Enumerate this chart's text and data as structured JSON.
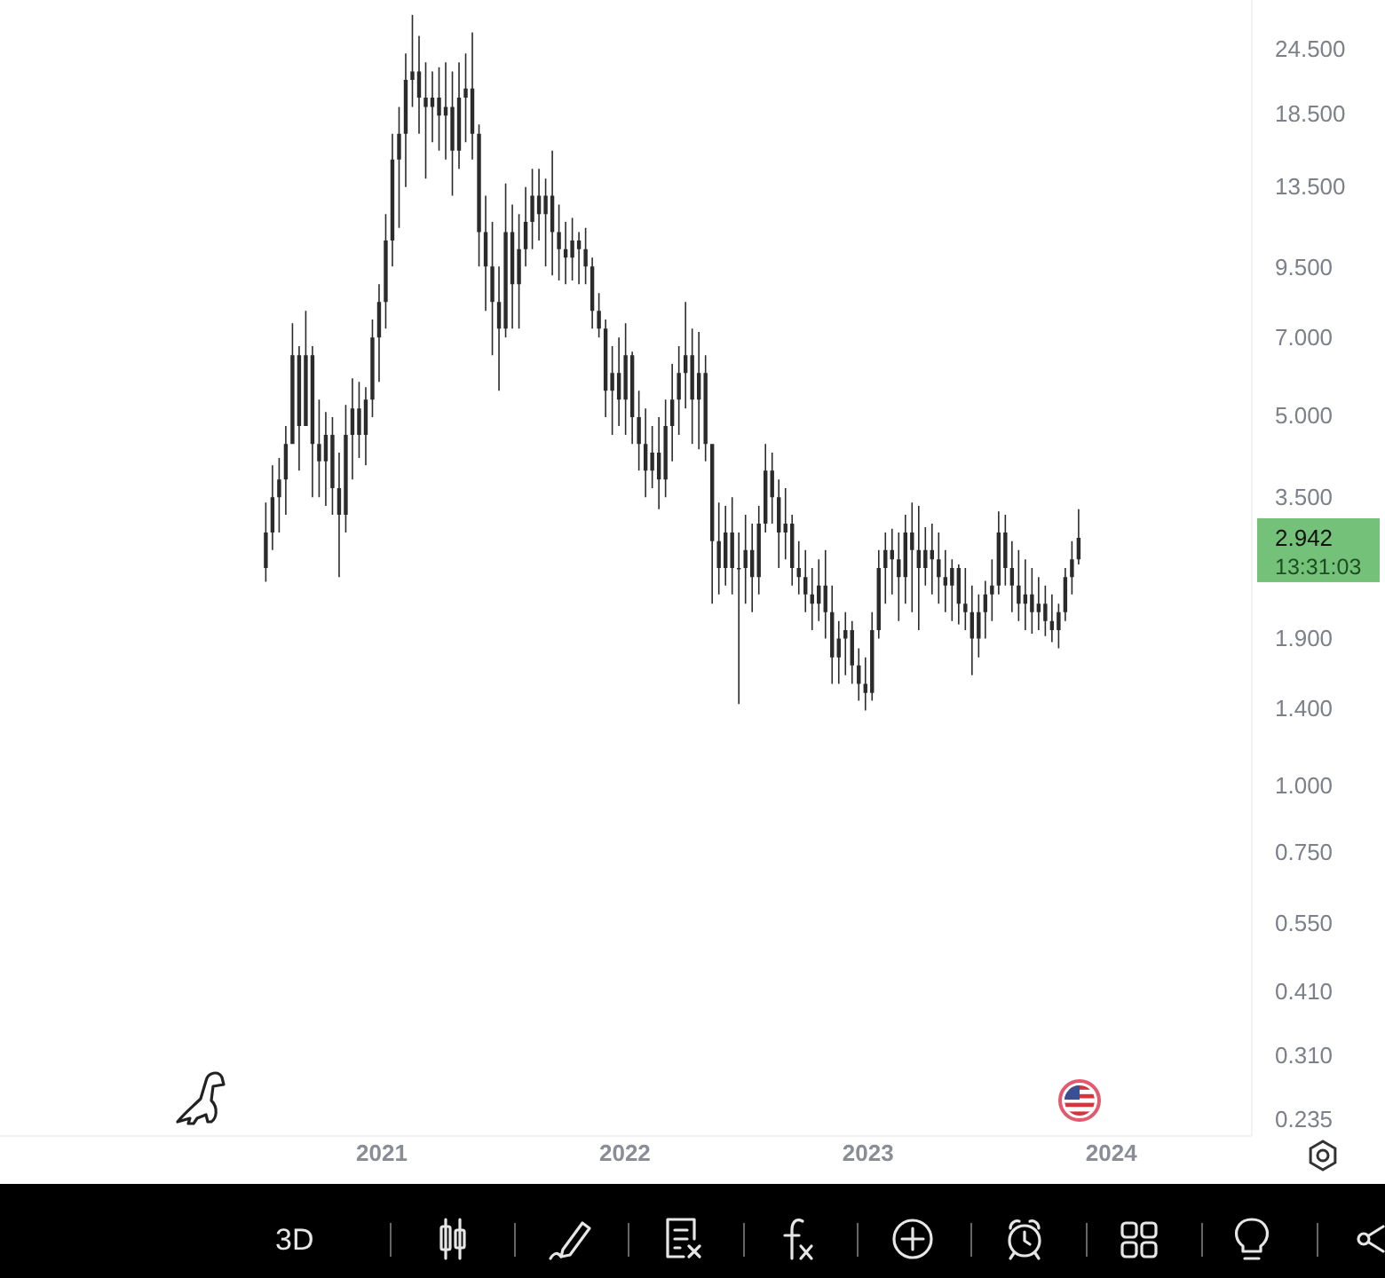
{
  "chart_data": {
    "type": "candlestick",
    "color": "#2b2b2b",
    "log": true,
    "x": [
      "2020-07-11",
      "2020-07-21",
      "2020-07-31",
      "2020-08-10",
      "2020-08-20",
      "2020-08-30",
      "2020-09-09",
      "2020-09-19",
      "2020-09-29",
      "2020-10-09",
      "2020-10-19",
      "2020-10-29",
      "2020-11-08",
      "2020-11-18",
      "2020-11-28",
      "2020-12-08",
      "2020-12-18",
      "2020-12-28",
      "2021-01-07",
      "2021-01-17",
      "2021-01-27",
      "2021-02-06",
      "2021-02-16",
      "2021-02-26",
      "2021-03-08",
      "2021-03-18",
      "2021-03-28",
      "2021-04-07",
      "2021-04-17",
      "2021-04-27",
      "2021-05-07",
      "2021-05-17",
      "2021-05-27",
      "2021-06-06",
      "2021-06-16",
      "2021-06-26",
      "2021-07-06",
      "2021-07-16",
      "2021-07-26",
      "2021-08-05",
      "2021-08-15",
      "2021-08-25",
      "2021-09-04",
      "2021-09-14",
      "2021-09-24",
      "2021-10-04",
      "2021-10-14",
      "2021-10-24",
      "2021-11-03",
      "2021-11-13",
      "2021-11-23",
      "2021-12-03",
      "2021-12-13",
      "2021-12-23",
      "2022-01-02",
      "2022-01-12",
      "2022-01-22",
      "2022-02-01",
      "2022-02-11",
      "2022-02-21",
      "2022-03-03",
      "2022-03-13",
      "2022-03-23",
      "2022-04-02",
      "2022-04-12",
      "2022-04-22",
      "2022-05-02",
      "2022-05-12",
      "2022-05-22",
      "2022-06-01",
      "2022-06-11",
      "2022-06-21",
      "2022-07-01",
      "2022-07-11",
      "2022-07-21",
      "2022-07-31",
      "2022-08-10",
      "2022-08-20",
      "2022-08-30",
      "2022-09-09",
      "2022-09-19",
      "2022-09-29",
      "2022-10-09",
      "2022-10-19",
      "2022-10-29",
      "2022-11-08",
      "2022-11-18",
      "2022-11-28",
      "2022-12-08",
      "2022-12-18",
      "2022-12-28",
      "2023-01-07",
      "2023-01-17",
      "2023-01-27",
      "2023-02-06",
      "2023-02-16",
      "2023-02-26",
      "2023-03-08",
      "2023-03-18",
      "2023-03-28",
      "2023-04-07",
      "2023-04-17",
      "2023-04-27",
      "2023-05-07",
      "2023-05-17",
      "2023-05-27",
      "2023-06-06",
      "2023-06-16",
      "2023-06-26",
      "2023-07-06",
      "2023-07-16",
      "2023-07-26",
      "2023-08-05",
      "2023-08-15",
      "2023-08-25",
      "2023-09-04",
      "2023-09-14",
      "2023-09-24",
      "2023-10-04",
      "2023-10-14",
      "2023-10-24",
      "2023-11-03",
      "2023-11-13"
    ],
    "ohlc": [
      [
        2.58,
        3.43,
        2.43,
        3.01
      ],
      [
        3.01,
        4.03,
        2.79,
        3.51
      ],
      [
        3.51,
        4.16,
        3.01,
        3.79
      ],
      [
        3.79,
        4.78,
        3.25,
        4.42
      ],
      [
        4.42,
        7.47,
        4.42,
        6.5
      ],
      [
        6.5,
        6.76,
        3.94,
        4.78
      ],
      [
        4.78,
        7.88,
        4.78,
        6.5
      ],
      [
        6.5,
        6.76,
        3.51,
        4.42
      ],
      [
        4.42,
        5.36,
        3.51,
        4.1
      ],
      [
        4.1,
        5.08,
        3.38,
        4.6
      ],
      [
        4.6,
        4.97,
        3.25,
        3.65
      ],
      [
        3.65,
        4.26,
        2.48,
        3.25
      ],
      [
        3.25,
        5.24,
        3.01,
        4.6
      ],
      [
        4.6,
        5.88,
        3.79,
        5.16
      ],
      [
        5.16,
        5.79,
        4.16,
        4.6
      ],
      [
        4.6,
        5.66,
        4.03,
        5.36
      ],
      [
        5.36,
        7.59,
        4.97,
        7.02
      ],
      [
        7.02,
        8.85,
        5.79,
        8.19
      ],
      [
        8.19,
        12.0,
        7.3,
        10.7
      ],
      [
        10.7,
        17.0,
        9.56,
        15.2
      ],
      [
        15.2,
        19.1,
        11.3,
        17.0
      ],
      [
        17.0,
        24.1,
        13.5,
        21.5
      ],
      [
        21.5,
        28.5,
        19.1,
        22.3
      ],
      [
        22.3,
        26.0,
        17.0,
        19.9
      ],
      [
        19.9,
        23.2,
        14.0,
        19.1
      ],
      [
        19.1,
        22.3,
        16.4,
        19.9
      ],
      [
        19.9,
        22.7,
        15.8,
        18.4
      ],
      [
        18.4,
        23.2,
        15.2,
        19.1
      ],
      [
        19.1,
        22.3,
        13.0,
        15.8
      ],
      [
        15.8,
        23.2,
        14.6,
        19.9
      ],
      [
        19.9,
        24.1,
        16.4,
        20.7
      ],
      [
        20.7,
        26.4,
        15.2,
        17.0
      ],
      [
        17.0,
        17.7,
        9.56,
        11.1
      ],
      [
        11.1,
        13.0,
        7.88,
        9.56
      ],
      [
        9.56,
        11.6,
        6.5,
        8.19
      ],
      [
        8.19,
        9.56,
        5.57,
        7.3
      ],
      [
        7.3,
        13.7,
        7.02,
        11.1
      ],
      [
        11.1,
        12.5,
        7.3,
        8.85
      ],
      [
        8.85,
        12.0,
        7.3,
        10.3
      ],
      [
        10.3,
        13.5,
        9.56,
        11.6
      ],
      [
        11.6,
        14.6,
        10.3,
        13.0
      ],
      [
        13.0,
        14.6,
        10.7,
        12.0
      ],
      [
        12.0,
        14.0,
        9.56,
        13.0
      ],
      [
        13.0,
        15.8,
        9.2,
        11.1
      ],
      [
        11.1,
        12.5,
        8.99,
        10.3
      ],
      [
        10.3,
        11.6,
        8.85,
        9.93
      ],
      [
        9.93,
        11.8,
        8.99,
        10.7
      ],
      [
        10.7,
        11.1,
        8.85,
        10.3
      ],
      [
        10.3,
        11.3,
        8.85,
        9.56
      ],
      [
        9.56,
        9.93,
        7.3,
        7.88
      ],
      [
        7.88,
        8.51,
        7.02,
        7.3
      ],
      [
        7.3,
        7.59,
        4.97,
        5.57
      ],
      [
        5.57,
        6.76,
        4.6,
        6.02
      ],
      [
        6.02,
        7.02,
        4.78,
        5.36
      ],
      [
        5.36,
        7.47,
        4.6,
        6.5
      ],
      [
        6.5,
        6.6,
        4.42,
        4.97
      ],
      [
        4.97,
        5.57,
        3.94,
        4.42
      ],
      [
        4.42,
        5.16,
        3.51,
        3.94
      ],
      [
        3.94,
        4.78,
        3.65,
        4.26
      ],
      [
        4.26,
        4.97,
        3.33,
        3.79
      ],
      [
        3.79,
        5.36,
        3.51,
        4.78
      ],
      [
        4.78,
        6.26,
        4.1,
        5.36
      ],
      [
        5.36,
        6.76,
        4.6,
        6.02
      ],
      [
        6.02,
        8.19,
        5.16,
        6.5
      ],
      [
        6.5,
        7.3,
        4.42,
        5.36
      ],
      [
        5.36,
        7.19,
        4.32,
        6.02
      ],
      [
        6.02,
        6.5,
        4.1,
        4.42
      ],
      [
        4.42,
        4.42,
        2.21,
        2.9
      ],
      [
        2.9,
        3.43,
        2.3,
        2.58
      ],
      [
        2.58,
        3.38,
        2.39,
        3.01
      ],
      [
        3.01,
        3.51,
        2.3,
        2.58
      ],
      [
        2.58,
        3.01,
        1.43,
        2.58
      ],
      [
        2.58,
        3.25,
        2.21,
        2.79
      ],
      [
        2.79,
        3.13,
        2.13,
        2.48
      ],
      [
        2.48,
        3.38,
        2.3,
        3.13
      ],
      [
        3.13,
        4.42,
        3.01,
        3.94
      ],
      [
        3.94,
        4.26,
        3.13,
        3.51
      ],
      [
        3.51,
        3.79,
        2.58,
        3.01
      ],
      [
        3.01,
        3.65,
        2.68,
        3.13
      ],
      [
        3.13,
        3.25,
        2.39,
        2.58
      ],
      [
        2.58,
        2.9,
        2.3,
        2.48
      ],
      [
        2.48,
        2.79,
        2.13,
        2.3
      ],
      [
        2.3,
        2.58,
        1.97,
        2.21
      ],
      [
        2.21,
        2.68,
        2.05,
        2.39
      ],
      [
        2.39,
        2.79,
        1.9,
        2.13
      ],
      [
        2.13,
        2.39,
        1.56,
        1.75
      ],
      [
        1.75,
        2.05,
        1.56,
        1.9
      ],
      [
        1.9,
        2.13,
        1.62,
        1.97
      ],
      [
        1.97,
        2.05,
        1.56,
        1.69
      ],
      [
        1.69,
        1.82,
        1.45,
        1.56
      ],
      [
        1.56,
        1.75,
        1.39,
        1.5
      ],
      [
        1.5,
        2.13,
        1.45,
        1.97
      ],
      [
        1.97,
        2.79,
        1.9,
        2.58
      ],
      [
        2.58,
        3.01,
        2.21,
        2.79
      ],
      [
        2.79,
        3.06,
        2.3,
        2.68
      ],
      [
        2.68,
        3.01,
        2.05,
        2.48
      ],
      [
        2.48,
        3.25,
        2.21,
        3.01
      ],
      [
        3.01,
        3.43,
        2.13,
        2.79
      ],
      [
        2.79,
        3.38,
        1.97,
        2.58
      ],
      [
        2.58,
        3.08,
        2.39,
        2.79
      ],
      [
        2.79,
        3.13,
        2.3,
        2.68
      ],
      [
        2.68,
        3.01,
        2.21,
        2.48
      ],
      [
        2.48,
        2.79,
        2.13,
        2.39
      ],
      [
        2.39,
        2.68,
        2.05,
        2.58
      ],
      [
        2.58,
        2.62,
        2.02,
        2.21
      ],
      [
        2.21,
        2.58,
        1.97,
        2.13
      ],
      [
        2.13,
        2.39,
        1.62,
        1.9
      ],
      [
        1.9,
        2.3,
        1.75,
        2.13
      ],
      [
        2.13,
        2.44,
        1.9,
        2.3
      ],
      [
        2.3,
        2.68,
        2.05,
        2.39
      ],
      [
        2.39,
        3.3,
        2.3,
        3.01
      ],
      [
        3.01,
        3.25,
        2.39,
        2.58
      ],
      [
        2.58,
        2.9,
        2.13,
        2.39
      ],
      [
        2.39,
        2.79,
        2.05,
        2.21
      ],
      [
        2.21,
        2.68,
        1.97,
        2.3
      ],
      [
        2.3,
        2.58,
        1.94,
        2.13
      ],
      [
        2.13,
        2.48,
        1.97,
        2.21
      ],
      [
        2.21,
        2.39,
        1.92,
        2.05
      ],
      [
        2.05,
        2.3,
        1.87,
        1.97
      ],
      [
        1.97,
        2.21,
        1.82,
        2.13
      ],
      [
        2.13,
        2.58,
        2.05,
        2.48
      ],
      [
        2.48,
        2.9,
        2.3,
        2.68
      ],
      [
        2.68,
        3.33,
        2.62,
        2.942
      ]
    ],
    "xlim": [
      "2019-06-08",
      "2024-07-30"
    ],
    "xticks": [
      "2021",
      "2022",
      "2023",
      "2024"
    ],
    "ylim": [
      0.219,
      30.4
    ],
    "yticks": [
      {
        "value": 24.5,
        "label": "24.500"
      },
      {
        "value": 18.5,
        "label": "18.500"
      },
      {
        "value": 13.5,
        "label": "13.500"
      },
      {
        "value": 9.5,
        "label": "9.500"
      },
      {
        "value": 7,
        "label": "7.000"
      },
      {
        "value": 5,
        "label": "5.000"
      },
      {
        "value": 3.5,
        "label": "3.500"
      },
      {
        "value": 1.9,
        "label": "1.900"
      },
      {
        "value": 1.4,
        "label": "1.400"
      },
      {
        "value": 1,
        "label": "1.000"
      },
      {
        "value": 0.75,
        "label": "0.750"
      },
      {
        "value": 0.55,
        "label": "0.550"
      },
      {
        "value": 0.41,
        "label": "0.410"
      },
      {
        "value": 0.31,
        "label": "0.310"
      },
      {
        "value": 0.235,
        "label": "0.235"
      }
    ],
    "annotations": [
      "2.942",
      "13:31:03",
      "3D"
    ]
  }
}
